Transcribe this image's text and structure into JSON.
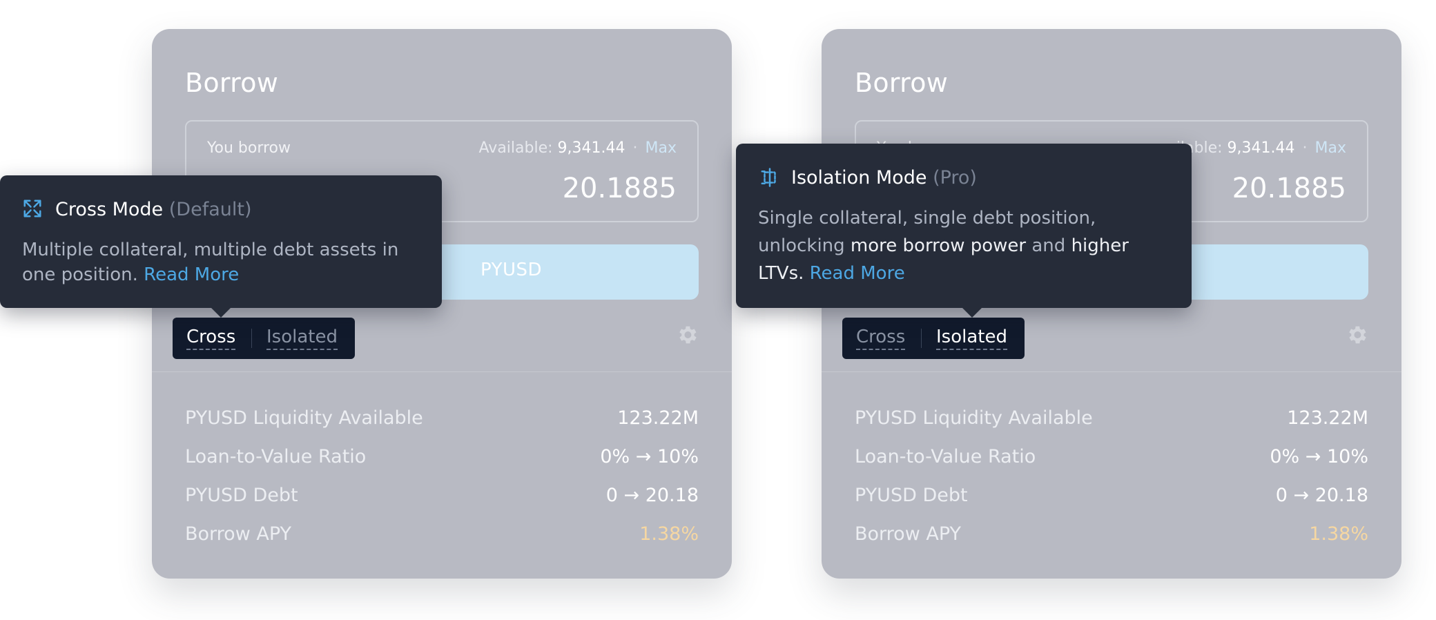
{
  "panels": [
    {
      "title": "Borrow",
      "you_borrow_label": "You borrow",
      "available_label": "Available:",
      "available_value": "9,341.44",
      "separator": "·",
      "max_label": "Max",
      "amount": "20.1885",
      "action_label": "PYUSD",
      "mode_options": {
        "cross": "Cross",
        "isolated": "Isolated"
      },
      "active_mode": "Cross",
      "stats": [
        {
          "label": "PYUSD Liquidity Available",
          "value": "123.22M"
        },
        {
          "label": "Loan-to-Value Ratio",
          "value": "0% → 10%"
        },
        {
          "label": "PYUSD Debt",
          "value": "0 → 20.18"
        },
        {
          "label": "Borrow APY",
          "value": "1.38%"
        }
      ],
      "tooltip": {
        "title": "Cross Mode",
        "tag": "(Default)",
        "icon": "expand-arrows-icon",
        "body_1": "Multiple collateral, multiple debt assets in",
        "body_2": "one position.",
        "link": "Read More"
      }
    },
    {
      "title": "Borrow",
      "you_borrow_label": "You borrow",
      "available_label": "ilable:",
      "available_value": "9,341.44",
      "separator": "·",
      "max_label": "Max",
      "amount": "20.1885",
      "action_label": "",
      "mode_options": {
        "cross": "Cross",
        "isolated": "Isolated"
      },
      "active_mode": "Isolated",
      "stats": [
        {
          "label": "PYUSD Liquidity Available",
          "value": "123.22M"
        },
        {
          "label": "Loan-to-Value Ratio",
          "value": "0% → 10%"
        },
        {
          "label": "PYUSD Debt",
          "value": "0 → 20.18"
        },
        {
          "label": "Borrow APY",
          "value": "1.38%"
        }
      ],
      "tooltip": {
        "title": "Isolation Mode",
        "tag": "(Pro)",
        "icon": "isolation-split-icon",
        "line_1": "Single collateral, single debt position,",
        "line_2_a": "unlocking",
        "line_2_b": "more borrow power",
        "line_2_c": "and",
        "line_2_d": "higher",
        "line_3_a": "LTVs.",
        "link": "Read More"
      }
    }
  ],
  "colors": {
    "card": "#b8bac3",
    "tooltip": "#262c39",
    "link": "#4da8e4",
    "apy": "#f6d7a2",
    "toggle": "#111a2c"
  }
}
